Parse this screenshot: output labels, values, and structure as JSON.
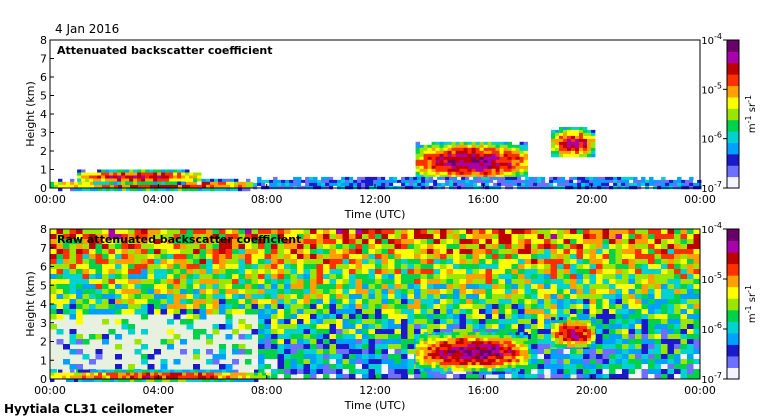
{
  "date_label": "4 Jan 2016",
  "footer": "Hyytiala CL31 ceilometer",
  "colormap": [
    "#f4f4ff",
    "#6e6eff",
    "#1a1acc",
    "#00a0ff",
    "#00d2d2",
    "#00d24b",
    "#9be600",
    "#ffff00",
    "#ffa000",
    "#ff3000",
    "#c00000",
    "#aa00aa",
    "#6a006a"
  ],
  "chart_data": [
    {
      "type": "heatmap",
      "title": "Attenuated backscatter coefficient",
      "xlabel": "Time (UTC)",
      "ylabel": "Height (km)",
      "x_ticks": [
        "00:00",
        "04:00",
        "08:00",
        "12:00",
        "16:00",
        "20:00",
        "00:00"
      ],
      "x_range_hours": [
        0,
        24
      ],
      "y_ticks": [
        "0",
        "1",
        "2",
        "3",
        "4",
        "5",
        "6",
        "7",
        "8"
      ],
      "ylim_km": [
        0,
        8
      ],
      "colorbar": {
        "ticks": [
          "10-7",
          "10-6",
          "10-5",
          "10-4"
        ],
        "exponents": [
          -7,
          -6,
          -5,
          -4
        ],
        "units": "m-1 sr-1",
        "scale": "log"
      },
      "features": [
        {
          "name": "boundary layer aerosol",
          "t_start": 0,
          "t_end": 8,
          "h_bottom": 0,
          "h_top": 0.5,
          "level": 0.8
        },
        {
          "name": "low cloud",
          "t_start": 1,
          "t_end": 5.5,
          "h_bottom": 0.35,
          "h_top": 1.0,
          "level": 0.85
        },
        {
          "name": "mid cloud",
          "t_start": 13.5,
          "t_end": 17.5,
          "h_bottom": 0.5,
          "h_top": 2.5,
          "level": 0.9
        },
        {
          "name": "cloud",
          "t_start": 18.5,
          "t_end": 20,
          "h_bottom": 1.7,
          "h_top": 3.3,
          "level": 0.85
        },
        {
          "name": "clear-air noise",
          "t_start": 7.5,
          "t_end": 24,
          "h_bottom": 0,
          "h_top": 0.6,
          "level": 0.2
        }
      ]
    },
    {
      "type": "heatmap",
      "title": "Raw attenuated backscatter coefficient",
      "xlabel": "Time (UTC)",
      "ylabel": "Height (km)",
      "x_ticks": [
        "00:00",
        "04:00",
        "08:00",
        "12:00",
        "16:00",
        "20:00",
        "00:00"
      ],
      "x_range_hours": [
        0,
        24
      ],
      "y_ticks": [
        "0",
        "1",
        "2",
        "3",
        "4",
        "5",
        "6",
        "7",
        "8"
      ],
      "ylim_km": [
        0,
        8
      ],
      "colorbar": {
        "ticks": [
          "10-7",
          "10-6",
          "10-5",
          "10-4"
        ],
        "exponents": [
          -7,
          -6,
          -5,
          -4
        ],
        "units": "m-1 sr-1",
        "scale": "log"
      },
      "features": [
        {
          "name": "boundary layer aerosol",
          "t_start": 0,
          "t_end": 8,
          "h_bottom": 0,
          "h_top": 0.5,
          "level": 0.8
        },
        {
          "name": "mid cloud",
          "t_start": 13.5,
          "t_end": 17.5,
          "h_bottom": 0.5,
          "h_top": 2.5,
          "level": 0.9
        },
        {
          "name": "cloud",
          "t_start": 18.5,
          "t_end": 20,
          "h_bottom": 1.7,
          "h_top": 3.3,
          "level": 0.85
        }
      ]
    }
  ]
}
